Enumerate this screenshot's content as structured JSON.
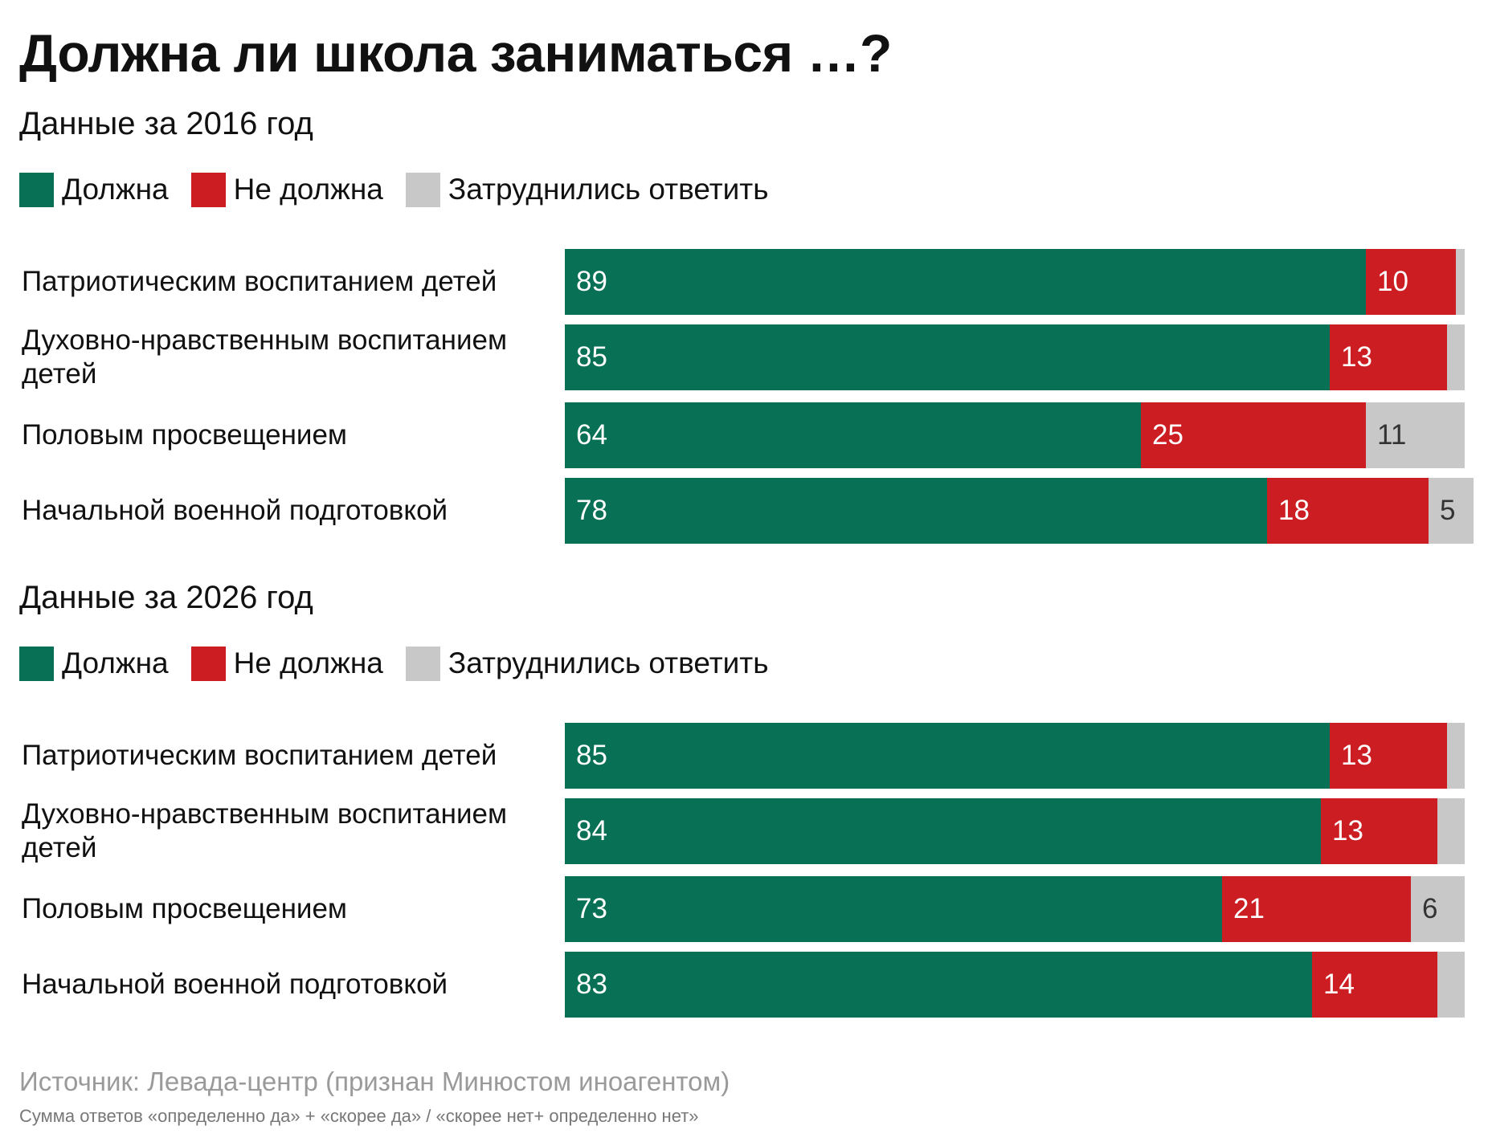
{
  "title": "Должна ли школа заниматься …?",
  "colors": {
    "yes": "#087055",
    "no": "#cc1d22",
    "unsure": "#c8c8c8"
  },
  "legend": [
    "Должна",
    "Не должна",
    "Затруднились ответить"
  ],
  "chart_data": [
    {
      "type": "bar",
      "orientation": "horizontal",
      "stacked": true,
      "title": "Данные за 2016 год",
      "legend_position": "top-left",
      "grid": false,
      "xlim": [
        0,
        100
      ],
      "categories": [
        "Патриотическим воспитанием детей",
        "Духовно-нравственным воспитанием детей",
        "Половым просвещением",
        "Начальной военной подготовкой"
      ],
      "series": [
        {
          "name": "Должна",
          "values": [
            89,
            85,
            64,
            78
          ],
          "labels": [
            "89",
            "85",
            "64",
            "78"
          ]
        },
        {
          "name": "Не должна",
          "values": [
            10,
            13,
            25,
            18
          ],
          "labels": [
            "10",
            "13",
            "25",
            "18"
          ]
        },
        {
          "name": "Затруднились ответить",
          "values": [
            1,
            2,
            11,
            5
          ],
          "labels": [
            "",
            "",
            "11",
            "5"
          ]
        }
      ]
    },
    {
      "type": "bar",
      "orientation": "horizontal",
      "stacked": true,
      "title": "Данные за 2026 год",
      "legend_position": "top-left",
      "grid": false,
      "xlim": [
        0,
        100
      ],
      "categories": [
        "Патриотическим воспитанием детей",
        "Духовно-нравственным воспитанием детей",
        "Половым просвещением",
        "Начальной военной подготовкой"
      ],
      "series": [
        {
          "name": "Должна",
          "values": [
            85,
            84,
            73,
            83
          ],
          "labels": [
            "85",
            "84",
            "73",
            "83"
          ]
        },
        {
          "name": "Не должна",
          "values": [
            13,
            13,
            21,
            14
          ],
          "labels": [
            "13",
            "13",
            "21",
            "14"
          ]
        },
        {
          "name": "Затруднились ответить",
          "values": [
            2,
            3,
            6,
            3
          ],
          "labels": [
            "",
            "",
            "6",
            ""
          ]
        }
      ]
    }
  ],
  "source": "Источник: Левада-центр (признан Минюстом иноагентом)",
  "note": "Сумма ответов «определенно да» + «скорее да» / «скорее нет+ определенно нет»"
}
